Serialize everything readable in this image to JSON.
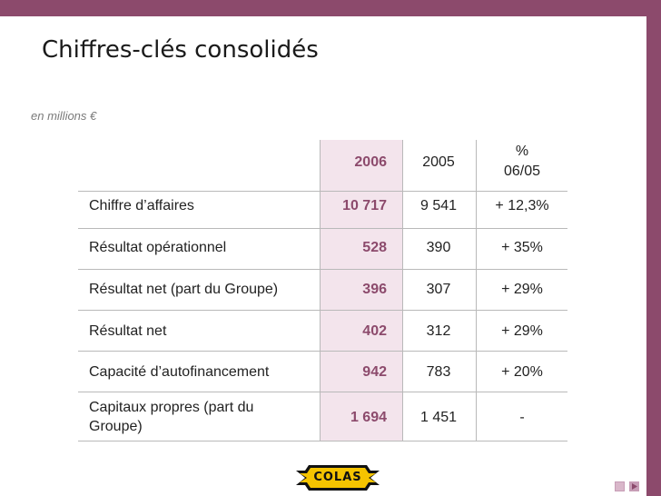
{
  "slide": {
    "title": "Chiffres-clés consolidés",
    "units": "en millions €"
  },
  "table": {
    "headers": {
      "col_2006": "2006",
      "col_2005": "2005",
      "col_pct_line1": "%",
      "col_pct_line2": "06/05"
    },
    "rows": [
      {
        "label": "Chiffre d’affaires",
        "v2006": "10 717",
        "v2005": "9 541",
        "pct": "+ 12,3%"
      },
      {
        "label": "Résultat opérationnel",
        "v2006": "528",
        "v2005": "390",
        "pct": "+ 35%"
      },
      {
        "label": "Résultat net (part du Groupe)",
        "v2006": "396",
        "v2005": "307",
        "pct": "+ 29%"
      },
      {
        "label": "Résultat net",
        "v2006": "402",
        "v2005": "312",
        "pct": "+ 29%"
      },
      {
        "label": "Capacité d’autofinancement",
        "v2006": "942",
        "v2005": "783",
        "pct": "+ 20%"
      },
      {
        "label_line1": "Capitaux propres (part du",
        "label_line2": "Groupe)",
        "v2006": "1 694",
        "v2005": "1 451",
        "pct": "-"
      }
    ]
  },
  "logo": {
    "text": "COLAS"
  },
  "colors": {
    "accent": "#8c4a6c",
    "highlight": "#f3e4ec",
    "logo_yellow": "#f5c400"
  }
}
